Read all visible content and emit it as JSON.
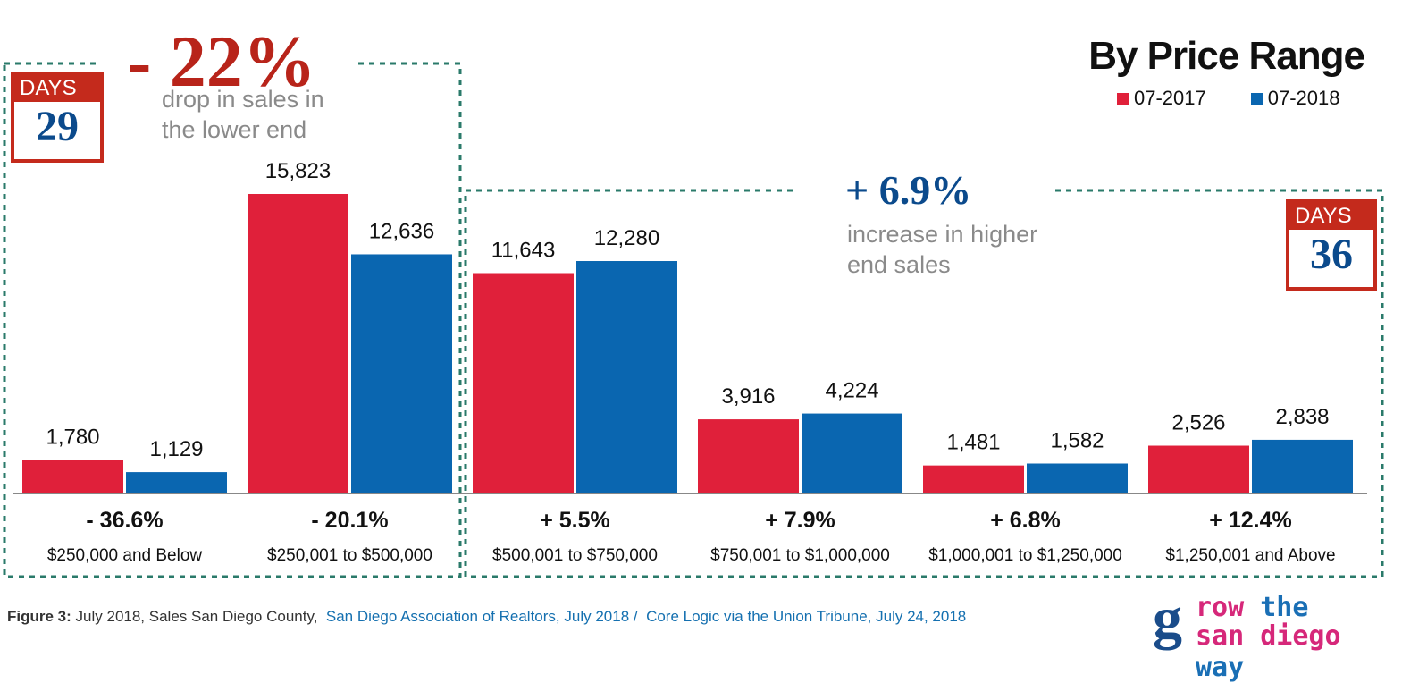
{
  "chart_data": {
    "type": "bar",
    "title": "By Price Range",
    "categories": [
      "$250,000 and Below",
      "$250,001 to $500,000",
      "$500,001 to $750,000",
      "$750,001 to $1,000,000",
      "$1,000,001 to $1,250,000",
      "$1,250,001 and Above"
    ],
    "series": [
      {
        "name": "07-2017",
        "color": "#e0203a",
        "values": [
          1780,
          15823,
          11643,
          3916,
          1481,
          2526
        ]
      },
      {
        "name": "07-2018",
        "color": "#0a66b0",
        "values": [
          1129,
          12636,
          12280,
          4224,
          1582,
          2838
        ]
      }
    ],
    "value_labels": {
      "07-2017": [
        "1,780",
        "15,823",
        "11,643",
        "3,916",
        "1,481",
        "2,526"
      ],
      "07-2018": [
        "1,129",
        "12,636",
        "12,280",
        "4,224",
        "1,582",
        "2,838"
      ]
    },
    "changes": [
      "- 36.6%",
      "- 20.1%",
      "+ 5.5%",
      "+ 7.9%",
      "+ 6.8%",
      "+ 12.4%"
    ],
    "ylim": [
      0,
      15823
    ],
    "legend_position": "top-right",
    "grid": false,
    "annotations": {
      "lower": {
        "pct": "- 22%",
        "note_line1": "drop in sales in",
        "note_line2": "the lower end",
        "days_label": "DAYS",
        "days_value": "29",
        "color": "#b8241a"
      },
      "higher": {
        "pct": "+ 6.9%",
        "note_line1": "increase in higher",
        "note_line2": "end sales",
        "days_label": "DAYS",
        "days_value": "36",
        "color": "#0b4a8c"
      }
    }
  },
  "footer": {
    "figure_label": "Figure 3:",
    "description": "July 2018, Sales San Diego County,",
    "source1": "San Diego Association of Realtors, July 2018",
    "separator": "/",
    "source2": "Core Logic via the Union Tribune, July 24, 2018"
  },
  "logo": {
    "letter": "g",
    "line1a": "row",
    "line1b": "the",
    "line2a": "san diego",
    "line2b": "way"
  }
}
